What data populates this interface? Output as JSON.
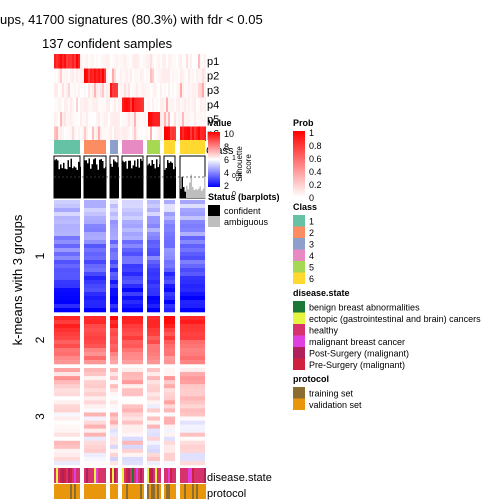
{
  "chart_data": {
    "type": "heatmap",
    "title": "ups, 41700 signatures (80.3%) with fdr < 0.05",
    "subtitle": "137 confident samples",
    "row_split_title": "k-means with 3 groups",
    "row_groups": [
      "1",
      "2",
      "3"
    ],
    "prob_rows": [
      "p1",
      "p2",
      "p3",
      "p4",
      "p5",
      "p6"
    ],
    "class_label": "Class",
    "silhouette_label": "Silhouette\nscore",
    "silhouette_axis": [
      "1",
      "0.5",
      "0"
    ],
    "column_groups": [
      {
        "class": "1",
        "color": "#66C2A5"
      },
      {
        "class": "2",
        "color": "#FC8D62"
      },
      {
        "class": "3",
        "color": "#8DA0CB"
      },
      {
        "class": "4",
        "color": "#E78AC3"
      },
      {
        "class": "5",
        "color": "#A6D854"
      },
      {
        "class": "6",
        "color": "#FFD92F"
      },
      {
        "class": "6",
        "color": "#FFD92F"
      }
    ],
    "bottom_annotations": [
      "disease.state",
      "protocol"
    ],
    "legends": {
      "value": {
        "title": "Value",
        "ticks": [
          "10",
          "8",
          "6",
          "4",
          "2"
        ],
        "colors": [
          "#FF0000",
          "#FFFFFF",
          "#0000FF"
        ]
      },
      "prob": {
        "title": "Prob",
        "ticks": [
          "1",
          "0.8",
          "0.6",
          "0.4",
          "0.2",
          "0"
        ],
        "colors": [
          "#FF0000",
          "#FFFFFF"
        ]
      },
      "status": {
        "title": "Status (barplots)",
        "items": [
          {
            "label": "confident",
            "color": "#000000"
          },
          {
            "label": "ambiguous",
            "color": "#BEBEBE"
          }
        ]
      },
      "class": {
        "title": "Class",
        "items": [
          {
            "label": "1",
            "color": "#66C2A5"
          },
          {
            "label": "2",
            "color": "#FC8D62"
          },
          {
            "label": "3",
            "color": "#8DA0CB"
          },
          {
            "label": "4",
            "color": "#E78AC3"
          },
          {
            "label": "5",
            "color": "#A6D854"
          },
          {
            "label": "6",
            "color": "#FFD92F"
          }
        ]
      },
      "disease_state": {
        "title": "disease.state",
        "items": [
          {
            "label": "benign breast abnormalities",
            "color": "#1B7837"
          },
          {
            "label": "ectopic (gastrointestinal and brain) cancers",
            "color": "#E6F542"
          },
          {
            "label": "healthy",
            "color": "#D6336C"
          },
          {
            "label": "malignant breast cancer",
            "color": "#E040E0"
          },
          {
            "label": "Post-Surgery (malignant)",
            "color": "#B0205A"
          },
          {
            "label": "Pre-Surgery (malignant)",
            "color": "#D02040"
          }
        ]
      },
      "protocol": {
        "title": "protocol",
        "items": [
          {
            "label": "training set",
            "color": "#8C6D31"
          },
          {
            "label": "validation set",
            "color": "#E8960C"
          }
        ]
      }
    }
  }
}
